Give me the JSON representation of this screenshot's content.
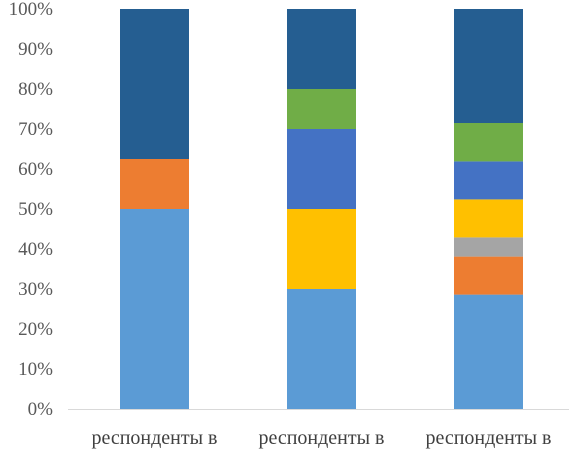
{
  "chart_data": {
    "type": "bar",
    "stacked": true,
    "percent_stacked": true,
    "title": "",
    "xlabel": "",
    "ylabel": "",
    "ylim": [
      0,
      100
    ],
    "y_ticks": [
      "0%",
      "10%",
      "20%",
      "30%",
      "40%",
      "50%",
      "60%",
      "70%",
      "80%",
      "90%",
      "100%"
    ],
    "categories": [
      "респонденты в",
      "респонденты в",
      "респонденты в"
    ],
    "grid": false,
    "legend": "none",
    "series": [
      {
        "color": "#5B9BD5",
        "values": [
          50,
          30,
          28.6
        ]
      },
      {
        "color": "#ED7D31",
        "values": [
          12.5,
          0,
          9.5
        ]
      },
      {
        "color": "#A5A5A5",
        "values": [
          0,
          0,
          4.8
        ]
      },
      {
        "color": "#FFC000",
        "values": [
          0,
          20,
          9.5
        ]
      },
      {
        "color": "#4472C4",
        "values": [
          0,
          20,
          9.5
        ]
      },
      {
        "color": "#70AD47",
        "values": [
          0,
          10,
          9.6
        ]
      },
      {
        "color": "#255E91",
        "values": [
          37.5,
          20,
          28.5
        ]
      }
    ]
  }
}
